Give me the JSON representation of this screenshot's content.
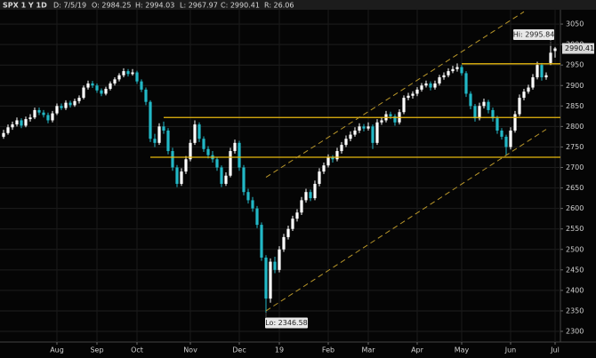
{
  "header": {
    "symbol": "SPX 1 Y 1D",
    "fields": [
      "D: 7/5/19",
      "O: 2984.25",
      "H: 2994.03",
      "L: 2967.97",
      "C: 2990.41",
      "R: 26.06"
    ]
  },
  "chart_data": {
    "type": "candlestick",
    "up_color": "#ffffff",
    "down_color": "#22b8c6",
    "grid": true,
    "xlim": [
      -0.8,
      125.2
    ],
    "ylim": [
      2274,
      3087
    ],
    "yticks": [
      2300,
      2350,
      2400,
      2450,
      2500,
      2550,
      2600,
      2650,
      2700,
      2750,
      2800,
      2850,
      2900,
      2950,
      3000,
      3050
    ],
    "xticks": [
      {
        "value": 12,
        "label": "Aug"
      },
      {
        "value": 21,
        "label": "Sep"
      },
      {
        "value": 30,
        "label": "Oct"
      },
      {
        "value": 42,
        "label": "Nov"
      },
      {
        "value": 53,
        "label": "Dec"
      },
      {
        "value": 62,
        "label": "19"
      },
      {
        "value": 73,
        "label": "Feb"
      },
      {
        "value": 82,
        "label": "Mar"
      },
      {
        "value": 93,
        "label": "Apr"
      },
      {
        "value": 103,
        "label": "May"
      },
      {
        "value": 114,
        "label": "Jun"
      },
      {
        "value": 124,
        "label": "Jul"
      }
    ],
    "ohlc": [
      [
        2775,
        2792,
        2770,
        2784
      ],
      [
        2784,
        2805,
        2780,
        2798
      ],
      [
        2798,
        2812,
        2792,
        2805
      ],
      [
        2805,
        2822,
        2800,
        2815
      ],
      [
        2815,
        2820,
        2796,
        2802
      ],
      [
        2802,
        2824,
        2798,
        2818
      ],
      [
        2818,
        2830,
        2812,
        2822
      ],
      [
        2822,
        2846,
        2818,
        2840
      ],
      [
        2840,
        2846,
        2828,
        2834
      ],
      [
        2834,
        2840,
        2822,
        2828
      ],
      [
        2828,
        2834,
        2808,
        2815
      ],
      [
        2815,
        2838,
        2810,
        2832
      ],
      [
        2832,
        2856,
        2828,
        2850
      ],
      [
        2850,
        2856,
        2840,
        2845
      ],
      [
        2845,
        2864,
        2840,
        2858
      ],
      [
        2858,
        2863,
        2846,
        2852
      ],
      [
        2852,
        2868,
        2848,
        2862
      ],
      [
        2862,
        2876,
        2856,
        2870
      ],
      [
        2870,
        2900,
        2866,
        2895
      ],
      [
        2895,
        2912,
        2890,
        2905
      ],
      [
        2905,
        2911,
        2894,
        2900
      ],
      [
        2900,
        2905,
        2882,
        2888
      ],
      [
        2888,
        2893,
        2874,
        2880
      ],
      [
        2880,
        2897,
        2876,
        2892
      ],
      [
        2892,
        2910,
        2888,
        2905
      ],
      [
        2905,
        2920,
        2900,
        2915
      ],
      [
        2915,
        2930,
        2910,
        2925
      ],
      [
        2925,
        2942,
        2920,
        2935
      ],
      [
        2935,
        2940,
        2922,
        2928
      ],
      [
        2928,
        2940,
        2924,
        2932
      ],
      [
        2932,
        2936,
        2904,
        2910
      ],
      [
        2910,
        2915,
        2884,
        2890
      ],
      [
        2890,
        2895,
        2852,
        2860
      ],
      [
        2860,
        2864,
        2762,
        2770
      ],
      [
        2770,
        2782,
        2750,
        2760
      ],
      [
        2760,
        2808,
        2755,
        2800
      ],
      [
        2800,
        2812,
        2782,
        2790
      ],
      [
        2790,
        2796,
        2732,
        2740
      ],
      [
        2740,
        2748,
        2692,
        2700
      ],
      [
        2700,
        2706,
        2652,
        2660
      ],
      [
        2660,
        2698,
        2655,
        2690
      ],
      [
        2690,
        2728,
        2684,
        2720
      ],
      [
        2720,
        2768,
        2715,
        2760
      ],
      [
        2760,
        2815,
        2755,
        2805
      ],
      [
        2805,
        2810,
        2762,
        2770
      ],
      [
        2770,
        2776,
        2738,
        2745
      ],
      [
        2745,
        2752,
        2722,
        2730
      ],
      [
        2730,
        2740,
        2712,
        2720
      ],
      [
        2720,
        2726,
        2692,
        2700
      ],
      [
        2700,
        2705,
        2652,
        2660
      ],
      [
        2660,
        2688,
        2655,
        2680
      ],
      [
        2680,
        2748,
        2676,
        2740
      ],
      [
        2740,
        2768,
        2734,
        2760
      ],
      [
        2760,
        2765,
        2692,
        2700
      ],
      [
        2700,
        2706,
        2632,
        2640
      ],
      [
        2640,
        2648,
        2612,
        2620
      ],
      [
        2620,
        2628,
        2592,
        2600
      ],
      [
        2600,
        2606,
        2552,
        2560
      ],
      [
        2560,
        2566,
        2472,
        2480
      ],
      [
        2480,
        2486,
        2346.58,
        2380
      ],
      [
        2380,
        2478,
        2370,
        2470
      ],
      [
        2470,
        2482,
        2442,
        2450
      ],
      [
        2450,
        2508,
        2444,
        2500
      ],
      [
        2500,
        2538,
        2494,
        2530
      ],
      [
        2530,
        2558,
        2524,
        2550
      ],
      [
        2550,
        2582,
        2545,
        2575
      ],
      [
        2575,
        2598,
        2568,
        2590
      ],
      [
        2590,
        2628,
        2584,
        2620
      ],
      [
        2620,
        2648,
        2614,
        2640
      ],
      [
        2640,
        2646,
        2618,
        2625
      ],
      [
        2625,
        2668,
        2620,
        2660
      ],
      [
        2660,
        2698,
        2654,
        2690
      ],
      [
        2690,
        2712,
        2684,
        2705
      ],
      [
        2705,
        2732,
        2700,
        2725
      ],
      [
        2725,
        2730,
        2712,
        2720
      ],
      [
        2720,
        2748,
        2715,
        2740
      ],
      [
        2740,
        2762,
        2734,
        2755
      ],
      [
        2755,
        2778,
        2750,
        2770
      ],
      [
        2770,
        2788,
        2764,
        2780
      ],
      [
        2780,
        2798,
        2775,
        2790
      ],
      [
        2790,
        2808,
        2784,
        2800
      ],
      [
        2800,
        2806,
        2788,
        2795
      ],
      [
        2795,
        2810,
        2790,
        2800
      ],
      [
        2800,
        2805,
        2745,
        2760
      ],
      [
        2760,
        2818,
        2755,
        2810
      ],
      [
        2810,
        2822,
        2804,
        2815
      ],
      [
        2815,
        2838,
        2810,
        2830
      ],
      [
        2830,
        2836,
        2818,
        2825
      ],
      [
        2825,
        2830,
        2802,
        2810
      ],
      [
        2810,
        2842,
        2805,
        2835
      ],
      [
        2835,
        2876,
        2830,
        2870
      ],
      [
        2870,
        2882,
        2864,
        2875
      ],
      [
        2875,
        2886,
        2868,
        2880
      ],
      [
        2880,
        2896,
        2874,
        2890
      ],
      [
        2890,
        2906,
        2885,
        2900
      ],
      [
        2900,
        2912,
        2895,
        2905
      ],
      [
        2905,
        2910,
        2888,
        2895
      ],
      [
        2895,
        2912,
        2890,
        2905
      ],
      [
        2905,
        2926,
        2900,
        2920
      ],
      [
        2920,
        2932,
        2914,
        2925
      ],
      [
        2925,
        2942,
        2920,
        2935
      ],
      [
        2935,
        2948,
        2930,
        2940
      ],
      [
        2940,
        2954,
        2934,
        2945
      ],
      [
        2945,
        2950,
        2924,
        2930
      ],
      [
        2930,
        2935,
        2872,
        2880
      ],
      [
        2880,
        2886,
        2842,
        2850
      ],
      [
        2850,
        2855,
        2812,
        2820
      ],
      [
        2820,
        2858,
        2815,
        2850
      ],
      [
        2850,
        2868,
        2844,
        2860
      ],
      [
        2860,
        2865,
        2832,
        2840
      ],
      [
        2840,
        2846,
        2812,
        2820
      ],
      [
        2820,
        2826,
        2782,
        2790
      ],
      [
        2790,
        2796,
        2768,
        2775
      ],
      [
        2775,
        2780,
        2730,
        2750
      ],
      [
        2750,
        2798,
        2744,
        2790
      ],
      [
        2790,
        2838,
        2785,
        2830
      ],
      [
        2830,
        2878,
        2825,
        2870
      ],
      [
        2870,
        2892,
        2864,
        2885
      ],
      [
        2885,
        2902,
        2880,
        2895
      ],
      [
        2895,
        2928,
        2890,
        2920
      ],
      [
        2920,
        2958,
        2915,
        2950
      ],
      [
        2950,
        2955,
        2912,
        2920
      ],
      [
        2920,
        2932,
        2914,
        2925
      ],
      [
        2955,
        2995.84,
        2950,
        2980
      ],
      [
        2984.25,
        2994.03,
        2967.97,
        2990.41
      ]
    ],
    "level_color": "#e8b90f",
    "levels": [
      {
        "value": 2953,
        "x": 103
      },
      {
        "value": 2822,
        "x": 36
      },
      {
        "value": 2725,
        "x": 33
      }
    ],
    "trend_color": "#b8962a",
    "trendlines": [
      {
        "x": [
          59,
          122
        ],
        "y": [
          2350,
          2793
        ]
      },
      {
        "x": [
          59,
          117
        ],
        "y": [
          2676,
          3080
        ]
      }
    ],
    "hi": {
      "value": 2995.84,
      "label": "Hi: 2995.84",
      "x": 123
    },
    "lo": {
      "value": 2346.58,
      "label": "Lo: 2346.58",
      "x": 59
    },
    "last_price": 2990.41
  }
}
